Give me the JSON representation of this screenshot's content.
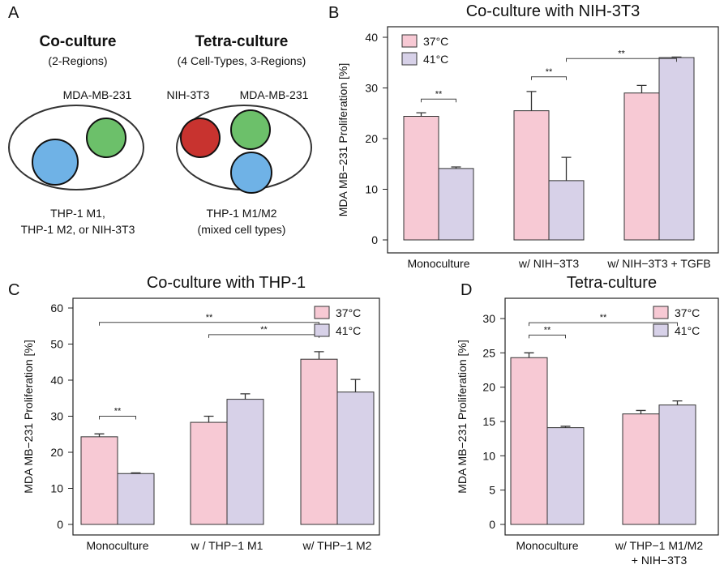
{
  "diagram": {
    "panel": "A",
    "coculture": {
      "title": "Co-culture",
      "subtitle": "(2-Regions)",
      "top_label": "MDA-MB-231",
      "bottom_label": [
        "THP-1 M1,",
        "THP-1 M2, or NIH-3T3"
      ]
    },
    "tetraculture": {
      "title": "Tetra-culture",
      "subtitle": "(4 Cell-Types, 3-Regions)",
      "top_labels": [
        "NIH-3T3",
        "MDA-MB-231"
      ],
      "bottom_label": [
        "THP-1 M1/M2",
        "(mixed cell types)"
      ]
    }
  },
  "chart_data": [
    {
      "type": "bar",
      "panel": "B",
      "title": "Co-culture with NIH-3T3",
      "y_label": "MDA MB−231 Proliferation [%]",
      "categories": [
        "Monoculture",
        "w/ NIH−3T3",
        "w/ NIH−3T3 + TGFB"
      ],
      "series": [
        {
          "name": "37°C",
          "color": "#f7c9d4",
          "values": [
            24.4,
            25.5,
            29.0
          ],
          "errors": [
            0.7,
            3.8,
            1.5
          ]
        },
        {
          "name": "41°C",
          "color": "#d7d1e8",
          "values": [
            14.1,
            11.7,
            36.0
          ],
          "errors": [
            0.3,
            4.6,
            0.1
          ]
        }
      ],
      "ylim": [
        0,
        40
      ],
      "yticks": [
        0,
        10,
        20,
        30,
        40
      ],
      "legend": "top-left",
      "significance": [
        {
          "label": "**",
          "y": 27.8,
          "from": [
            0,
            0
          ],
          "to": [
            0,
            1
          ]
        },
        {
          "label": "**",
          "y": 32.2,
          "from": [
            1,
            0
          ],
          "to": [
            1,
            1
          ]
        },
        {
          "label": "**",
          "y": 35.8,
          "from": [
            1,
            1
          ],
          "to": [
            2,
            1
          ]
        }
      ]
    },
    {
      "type": "bar",
      "panel": "C",
      "title": "Co-culture with THP-1",
      "y_label": "MDA MB−231 Proliferation [%]",
      "categories": [
        "Monoculture",
        "w / THP−1 M1",
        "w/ THP−1 M2"
      ],
      "series": [
        {
          "name": "37°C",
          "color": "#f7c9d4",
          "values": [
            24.3,
            28.3,
            45.8
          ],
          "errors": [
            0.8,
            1.7,
            2.1
          ]
        },
        {
          "name": "41°C",
          "color": "#d7d1e8",
          "values": [
            14.1,
            34.7,
            36.7
          ],
          "errors": [
            0.2,
            1.5,
            3.5
          ]
        }
      ],
      "ylim": [
        0,
        60
      ],
      "yticks": [
        0,
        10,
        20,
        30,
        40,
        50,
        60
      ],
      "legend": "top-right",
      "significance": [
        {
          "label": "**",
          "y": 30,
          "from": [
            0,
            0
          ],
          "to": [
            0,
            1
          ]
        },
        {
          "label": "**",
          "y": 52.6,
          "from": [
            1,
            0
          ],
          "to": [
            2,
            0
          ]
        },
        {
          "label": "**",
          "y": 56,
          "from": [
            0,
            0
          ],
          "to": [
            2,
            0
          ]
        }
      ]
    },
    {
      "type": "bar",
      "panel": "D",
      "title": "Tetra-culture",
      "y_label": "MDA MB−231 Proliferation [%]",
      "categories": [
        "Monoculture",
        "w/ THP−1 M1/M2\n+ NIH−3T3"
      ],
      "series": [
        {
          "name": "37°C",
          "color": "#f7c9d4",
          "values": [
            24.3,
            16.1
          ],
          "errors": [
            0.7,
            0.5
          ]
        },
        {
          "name": "41°C",
          "color": "#d7d1e8",
          "values": [
            14.1,
            17.4
          ],
          "errors": [
            0.2,
            0.6
          ]
        }
      ],
      "ylim": [
        0,
        30
      ],
      "yticks": [
        0,
        5,
        10,
        15,
        20,
        25,
        30
      ],
      "legend": "top-right",
      "significance": [
        {
          "label": "**",
          "y": 27.6,
          "from": [
            0,
            0
          ],
          "to": [
            0,
            1
          ]
        },
        {
          "label": "**",
          "y": 29.4,
          "from": [
            0,
            0
          ],
          "to": [
            1,
            1
          ]
        }
      ]
    }
  ]
}
